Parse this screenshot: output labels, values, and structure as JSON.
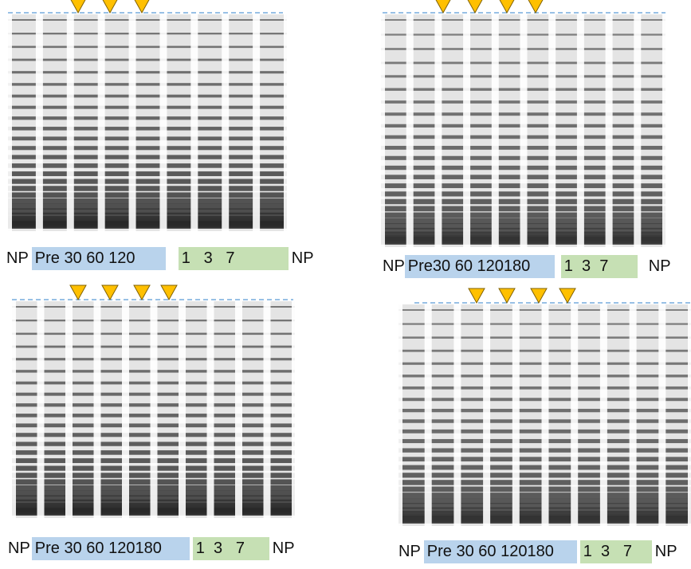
{
  "panels": [
    {
      "left": "NP",
      "blue": "Pre 30 60 120",
      "green": "1   3   7",
      "right": "NP"
    },
    {
      "left": "NP",
      "blue": "Pre30 60 120180",
      "green": "1  3  7",
      "right": "NP"
    },
    {
      "left": "NP",
      "blue": "Pre 30 60 120180",
      "green": "1  3   7",
      "right": "NP"
    },
    {
      "left": "NP",
      "blue": "Pre 30 60 120180",
      "green": "1  3   7",
      "right": "NP"
    }
  ]
}
